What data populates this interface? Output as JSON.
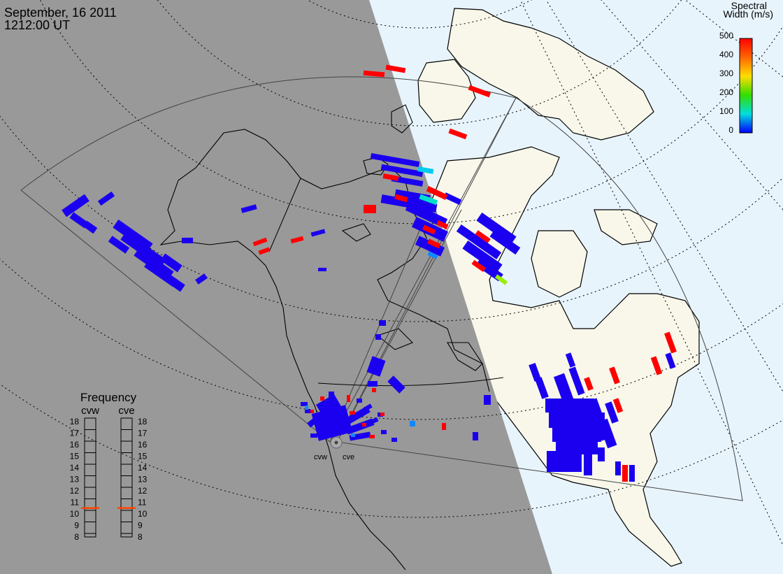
{
  "header": {
    "date": "September, 16 2011",
    "time": "1212:00 UT"
  },
  "colorbar": {
    "title_line1": "Spectral",
    "title_line2": "Width (m/s)",
    "ticks": [
      "500",
      "400",
      "300",
      "200",
      "100",
      "0"
    ],
    "colors": [
      "#ff0000",
      "#ff8800",
      "#ffdd00",
      "#33dd00",
      "#00dddd",
      "#0000ff"
    ]
  },
  "frequency_panel": {
    "title": "Frequency",
    "left_label": "cvw",
    "right_label": "cve",
    "scale": [
      "18",
      "17",
      "16",
      "15",
      "14",
      "13",
      "12",
      "11",
      "10",
      "9",
      "8"
    ],
    "cvw_value": 10.5,
    "cve_value": 10.5,
    "marker_color": "#ff4400"
  },
  "radars": {
    "west_label": "cvw",
    "east_label": "cve"
  },
  "colors": {
    "night": "#999999",
    "day_land": "#f8f7ea",
    "day_ocean": "#e8f4fc",
    "scatter_low": "#1a00ee",
    "scatter_high": "#ff0000"
  }
}
